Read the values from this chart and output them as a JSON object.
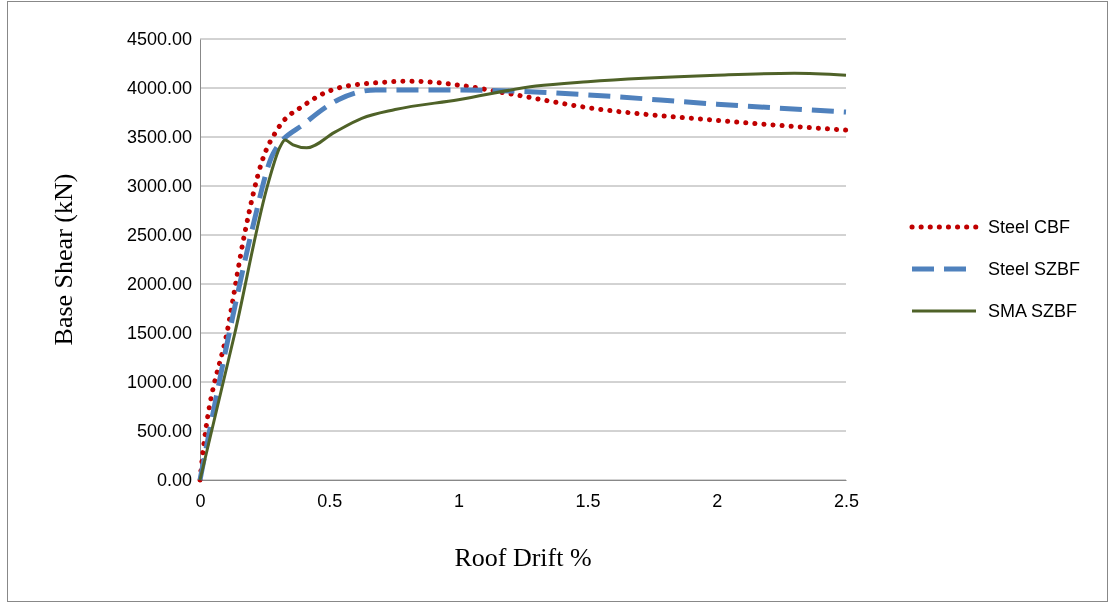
{
  "chart_data": {
    "type": "line",
    "xlabel": "Roof Drift %",
    "ylabel": "Base Shear (kN)",
    "xlim": [
      0,
      2.5
    ],
    "xticks": [
      0,
      0.5,
      1,
      1.5,
      2,
      2.5
    ],
    "ylim": [
      0,
      4500
    ],
    "yticks": [
      {
        "value": 0,
        "label": "0.00"
      },
      {
        "value": 500,
        "label": "500.00"
      },
      {
        "value": 1000,
        "label": "1000.00"
      },
      {
        "value": 1500,
        "label": "1500.00"
      },
      {
        "value": 2000,
        "label": "2000.00"
      },
      {
        "value": 2500,
        "label": "2500.00"
      },
      {
        "value": 3000,
        "label": "3000.00"
      },
      {
        "value": 3500,
        "label": "3500.00"
      },
      {
        "value": 4000,
        "label": "4000.00"
      },
      {
        "value": 4500,
        "label": "4500.00"
      }
    ],
    "grid": "y",
    "legend": "right",
    "marker": "none",
    "series": [
      {
        "name": "Steel CBF",
        "color": "#c00000",
        "line_style": "dotted",
        "x": [
          0,
          0.01,
          0.11,
          0.174,
          0.239,
          0.3,
          0.406,
          0.535,
          0.716,
          0.81,
          1.0,
          1.2,
          1.5,
          2.0,
          2.5
        ],
        "values": [
          0,
          250,
          1580,
          2530,
          3245,
          3580,
          3830,
          4000,
          4060,
          4070,
          4030,
          3940,
          3800,
          3670,
          3570
        ]
      },
      {
        "name": "Steel SZBF",
        "color": "#4f81bd",
        "line_style": "dashed",
        "x": [
          0,
          0.135,
          0.204,
          0.283,
          0.406,
          0.535,
          0.68,
          1.0,
          1.2,
          1.5,
          2.0,
          2.5
        ],
        "values": [
          0,
          1770,
          2580,
          3330,
          3640,
          3880,
          3980,
          3980,
          3970,
          3930,
          3835,
          3755
        ]
      },
      {
        "name": "SMA SZBF",
        "color": "#4f6228",
        "line_style": "solid",
        "x": [
          0,
          0.135,
          0.264,
          0.31,
          0.329,
          0.36,
          0.413,
          0.522,
          0.626,
          0.755,
          1.0,
          1.3,
          1.5,
          2.0,
          2.3,
          2.5
        ],
        "values": [
          0,
          1500,
          3030,
          3400,
          3470,
          3420,
          3390,
          3550,
          3690,
          3780,
          3880,
          4020,
          4065,
          4130,
          4150,
          4130
        ]
      }
    ]
  }
}
